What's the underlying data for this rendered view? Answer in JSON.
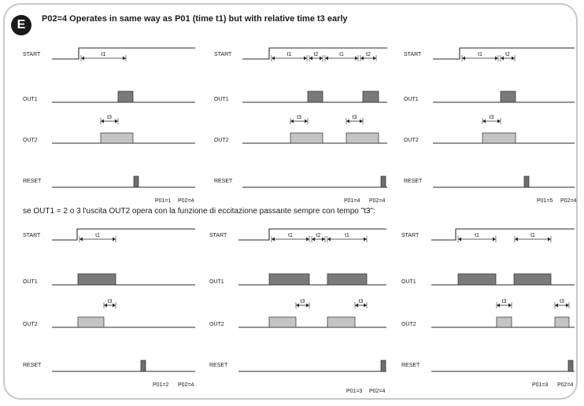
{
  "header": {
    "badge": "E",
    "title": "P02=4 Operates in same way as P01 (time t1) but with relative time t3 early"
  },
  "note": "se OUT1 = 2 o 3 l'uscita OUT2 opera con la funzione di eccitazione passante sempre con tempo \"t3\":",
  "signal_labels": {
    "start": "START",
    "out1": "OUT1",
    "out2": "OUT2",
    "reset": "RESET"
  },
  "time_labels": {
    "t1": "t1",
    "t2": "t2",
    "t3": "t3"
  },
  "colors": {
    "line": "#2a2a2a",
    "out1_fill": "#7a7a7a",
    "out2_fill": "#c4c4c4",
    "reset_fill": "#6e6e6e",
    "frame": "#c8c8c8"
  },
  "panels": [
    {
      "id": "p01-1",
      "params": [
        "P01=1",
        "P02=4"
      ]
    },
    {
      "id": "p01-4",
      "params": [
        "P01=4",
        "P02=4"
      ]
    },
    {
      "id": "p01-5",
      "params": [
        "P01=5",
        "P02=4"
      ]
    },
    {
      "id": "p01-2",
      "params": [
        "P01=2",
        "P02=4"
      ]
    },
    {
      "id": "p01-3a",
      "params": [
        "P01=3",
        "P02=4"
      ]
    },
    {
      "id": "p01-3b",
      "params": [
        "P01=3",
        "P02=4"
      ]
    }
  ]
}
